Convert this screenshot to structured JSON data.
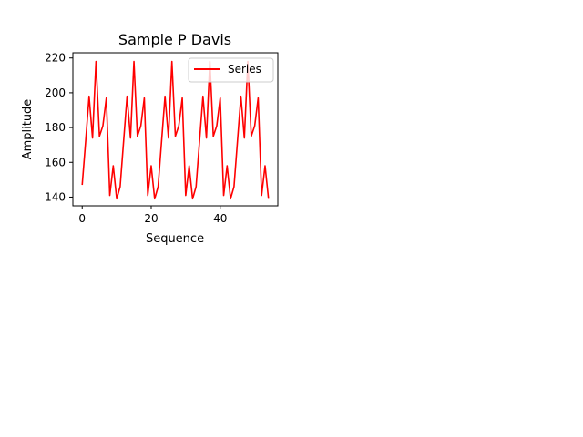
{
  "chart_data": {
    "type": "line",
    "title": "Sample P Davis",
    "xlabel": "Sequence",
    "ylabel": "Amplitude",
    "xlim": [
      -2.7,
      56.7
    ],
    "ylim": [
      135,
      223
    ],
    "xticks": [
      0,
      20,
      40
    ],
    "yticks": [
      140,
      160,
      180,
      200,
      220
    ],
    "grid": false,
    "legend": {
      "placement": "top-right"
    },
    "series": [
      {
        "name": "Series",
        "color": "#ff0000",
        "x": [
          0,
          1,
          2,
          3,
          4,
          5,
          6,
          7,
          8,
          9,
          10,
          11,
          12,
          13,
          14,
          15,
          16,
          17,
          18,
          19,
          20,
          21,
          22,
          23,
          24,
          25,
          26,
          27,
          28,
          29,
          30,
          31,
          32,
          33,
          34,
          35,
          36,
          37,
          38,
          39,
          40,
          41,
          42,
          43,
          44,
          45,
          46,
          47,
          48,
          49,
          50,
          51,
          52,
          53,
          54
        ],
        "values": [
          147,
          172,
          198,
          174,
          218,
          175,
          181,
          197,
          141,
          158,
          139,
          146,
          172,
          198,
          174,
          218,
          175,
          181,
          197,
          141,
          158,
          139,
          146,
          172,
          198,
          174,
          218,
          175,
          181,
          197,
          141,
          158,
          139,
          146,
          172,
          198,
          174,
          218,
          175,
          181,
          197,
          141,
          158,
          139,
          146,
          172,
          198,
          174,
          218,
          175,
          181,
          197,
          141,
          158,
          139
        ]
      }
    ]
  }
}
